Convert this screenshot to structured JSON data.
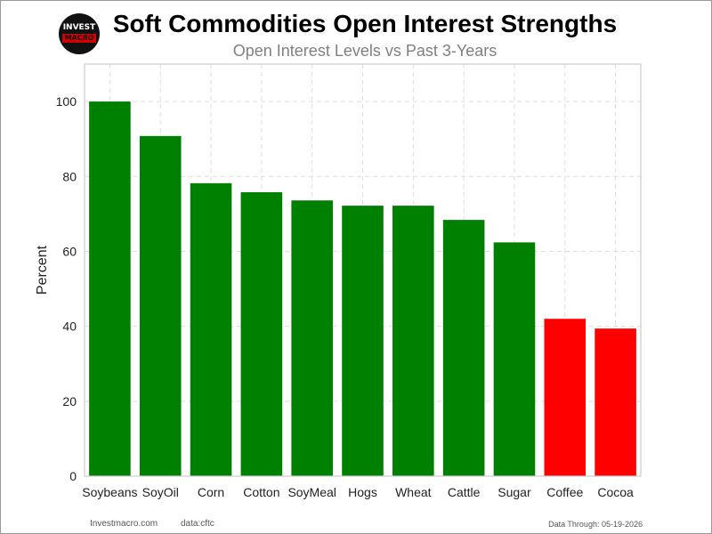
{
  "header": {
    "logo_line1": "INVEST",
    "logo_line2": "MACRO",
    "title": "Soft Commodities Open Interest Strengths",
    "subtitle": "Open Interest Levels vs Past 3-Years"
  },
  "footer": {
    "site": "Investmacro.com",
    "source": "data:cftc",
    "data_through": "Data Through: 05-19-2026"
  },
  "colors": {
    "positive": "#008000",
    "negative": "#ff0000"
  },
  "chart_data": {
    "type": "bar",
    "title": "Soft Commodities Open Interest Strengths",
    "subtitle": "Open Interest Levels vs Past 3-Years",
    "xlabel": "",
    "ylabel": "Percent",
    "ylim": [
      0,
      110
    ],
    "yticks": [
      0,
      20,
      40,
      60,
      80,
      100
    ],
    "grid": true,
    "categories": [
      "Soybeans",
      "SoyOil",
      "Corn",
      "Cotton",
      "SoyMeal",
      "Hogs",
      "Wheat",
      "Cattle",
      "Sugar",
      "Coffee",
      "Cocoa"
    ],
    "values": [
      100,
      90.8,
      78.2,
      75.8,
      73.6,
      72.2,
      72.2,
      68.4,
      62.4,
      42.0,
      39.4
    ],
    "bar_colors": [
      "#008000",
      "#008000",
      "#008000",
      "#008000",
      "#008000",
      "#008000",
      "#008000",
      "#008000",
      "#008000",
      "#ff0000",
      "#ff0000"
    ]
  }
}
